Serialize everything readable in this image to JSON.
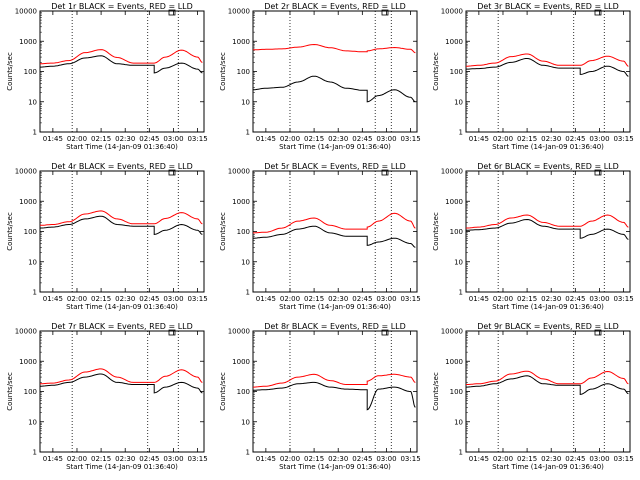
{
  "x_ticks": [
    "01:45",
    "02:00",
    "02:15",
    "02:30",
    "02:45",
    "03:00",
    "03:15"
  ],
  "y_ticks": [
    "1",
    "10",
    "100",
    "1000",
    "10000"
  ],
  "ylabel": "Counts/sec",
  "xlabel": "Start Time (14-Jan-09 01:36:40)",
  "colors": {
    "events": "#000000",
    "lld": "#ff0000",
    "axis": "#000000"
  },
  "chart_data": [
    {
      "type": "line",
      "title": "Det 1r BLACK = Events, RED = LLD",
      "yscale": "log",
      "ylim": [
        1,
        10000
      ],
      "xlabel": "Start Time (14-Jan-09 01:36:40)",
      "ylabel": "Counts/sec",
      "x": [
        "01:37",
        "01:45",
        "01:55",
        "02:05",
        "02:15",
        "02:25",
        "02:35",
        "02:45",
        "02:48",
        "02:55",
        "03:05",
        "03:15",
        "03:18"
      ],
      "series": [
        {
          "name": "Events",
          "values": [
            140,
            150,
            180,
            280,
            330,
            180,
            160,
            160,
            90,
            130,
            190,
            120,
            90
          ]
        },
        {
          "name": "LLD",
          "values": [
            180,
            190,
            230,
            420,
            530,
            290,
            190,
            190,
            190,
            300,
            510,
            300,
            200
          ]
        }
      ]
    },
    {
      "type": "line",
      "title": "Det 2r BLACK = Events, RED = LLD",
      "yscale": "log",
      "ylim": [
        1,
        10000
      ],
      "xlabel": "Start Time (14-Jan-09 01:36:40)",
      "ylabel": "Counts/sec",
      "x": [
        "01:37",
        "01:45",
        "01:55",
        "02:05",
        "02:15",
        "02:25",
        "02:35",
        "02:45",
        "02:48",
        "02:55",
        "03:05",
        "03:15",
        "03:18"
      ],
      "series": [
        {
          "name": "Events",
          "values": [
            25,
            28,
            30,
            45,
            70,
            45,
            28,
            24,
            10,
            16,
            25,
            14,
            10
          ]
        },
        {
          "name": "LLD",
          "values": [
            520,
            540,
            560,
            640,
            780,
            610,
            480,
            450,
            480,
            560,
            620,
            540,
            420
          ]
        }
      ]
    },
    {
      "type": "line",
      "title": "Det 3r BLACK = Events, RED = LLD",
      "yscale": "log",
      "ylim": [
        1,
        10000
      ],
      "xlabel": "Start Time (14-Jan-09 01:36:40)",
      "ylabel": "Counts/sec",
      "x": [
        "01:37",
        "01:45",
        "01:55",
        "02:05",
        "02:15",
        "02:25",
        "02:35",
        "02:45",
        "02:48",
        "02:55",
        "03:05",
        "03:15",
        "03:18"
      ],
      "series": [
        {
          "name": "Events",
          "values": [
            120,
            125,
            140,
            200,
            270,
            160,
            130,
            130,
            80,
            100,
            150,
            100,
            70
          ]
        },
        {
          "name": "LLD",
          "values": [
            150,
            160,
            190,
            310,
            380,
            220,
            160,
            160,
            160,
            230,
            320,
            220,
            150
          ]
        }
      ]
    },
    {
      "type": "line",
      "title": "Det 4r BLACK = Events, RED = LLD",
      "yscale": "log",
      "ylim": [
        1,
        10000
      ],
      "xlabel": "Start Time (14-Jan-09 01:36:40)",
      "ylabel": "Counts/sec",
      "x": [
        "01:37",
        "01:45",
        "01:55",
        "02:05",
        "02:15",
        "02:25",
        "02:35",
        "02:45",
        "02:48",
        "02:55",
        "03:05",
        "03:15",
        "03:18"
      ],
      "series": [
        {
          "name": "Events",
          "values": [
            130,
            140,
            170,
            260,
            320,
            170,
            150,
            150,
            80,
            110,
            170,
            110,
            80
          ]
        },
        {
          "name": "LLD",
          "values": [
            160,
            170,
            210,
            380,
            480,
            260,
            180,
            180,
            180,
            270,
            420,
            260,
            180
          ]
        }
      ]
    },
    {
      "type": "line",
      "title": "Det 5r BLACK = Events, RED = LLD",
      "yscale": "log",
      "ylim": [
        1,
        10000
      ],
      "xlabel": "Start Time (14-Jan-09 01:36:40)",
      "ylabel": "Counts/sec",
      "x": [
        "01:37",
        "01:45",
        "01:55",
        "02:05",
        "02:15",
        "02:25",
        "02:35",
        "02:45",
        "02:48",
        "02:55",
        "03:05",
        "03:15",
        "03:18"
      ],
      "series": [
        {
          "name": "Events",
          "values": [
            60,
            65,
            80,
            120,
            150,
            90,
            70,
            70,
            35,
            45,
            60,
            40,
            30
          ]
        },
        {
          "name": "LLD",
          "values": [
            90,
            95,
            130,
            220,
            280,
            160,
            120,
            120,
            140,
            220,
            400,
            220,
            130
          ]
        }
      ]
    },
    {
      "type": "line",
      "title": "Det 6r BLACK = Events, RED = LLD",
      "yscale": "log",
      "ylim": [
        1,
        10000
      ],
      "xlabel": "Start Time (14-Jan-09 01:36:40)",
      "ylabel": "Counts/sec",
      "x": [
        "01:37",
        "01:45",
        "01:55",
        "02:05",
        "02:15",
        "02:25",
        "02:35",
        "02:45",
        "02:48",
        "02:55",
        "03:05",
        "03:15",
        "03:18"
      ],
      "series": [
        {
          "name": "Events",
          "values": [
            110,
            115,
            130,
            190,
            250,
            150,
            120,
            120,
            60,
            80,
            120,
            80,
            55
          ]
        },
        {
          "name": "LLD",
          "values": [
            130,
            140,
            170,
            280,
            350,
            200,
            150,
            150,
            150,
            220,
            350,
            200,
            140
          ]
        }
      ]
    },
    {
      "type": "line",
      "title": "Det 7r BLACK = Events, RED = LLD",
      "yscale": "log",
      "ylim": [
        1,
        10000
      ],
      "xlabel": "Start Time (14-Jan-09 01:36:40)",
      "ylabel": "Counts/sec",
      "x": [
        "01:37",
        "01:45",
        "01:55",
        "02:05",
        "02:15",
        "02:25",
        "02:35",
        "02:45",
        "02:48",
        "02:55",
        "03:05",
        "03:15",
        "03:18"
      ],
      "series": [
        {
          "name": "Events",
          "values": [
            150,
            160,
            200,
            300,
            380,
            200,
            170,
            170,
            90,
            140,
            200,
            130,
            90
          ]
        },
        {
          "name": "LLD",
          "values": [
            180,
            190,
            240,
            440,
            560,
            300,
            200,
            200,
            200,
            320,
            520,
            300,
            200
          ]
        }
      ]
    },
    {
      "type": "line",
      "title": "Det 8r BLACK = Events, RED = LLD",
      "yscale": "log",
      "ylim": [
        1,
        10000
      ],
      "xlabel": "Start Time (14-Jan-09 01:36:40)",
      "ylabel": "Counts/sec",
      "x": [
        "01:37",
        "01:45",
        "01:55",
        "02:05",
        "02:15",
        "02:25",
        "02:35",
        "02:45",
        "02:48",
        "02:55",
        "03:05",
        "03:15",
        "03:18"
      ],
      "series": [
        {
          "name": "Events",
          "values": [
            110,
            115,
            130,
            180,
            200,
            140,
            120,
            115,
            25,
            120,
            140,
            100,
            30
          ]
        },
        {
          "name": "LLD",
          "values": [
            140,
            150,
            190,
            300,
            370,
            230,
            170,
            170,
            220,
            330,
            370,
            300,
            200
          ]
        }
      ]
    },
    {
      "type": "line",
      "title": "Det 9r BLACK = Events, RED = LLD",
      "yscale": "log",
      "ylim": [
        1,
        10000
      ],
      "xlabel": "Start Time (14-Jan-09 01:36:40)",
      "ylabel": "Counts/sec",
      "x": [
        "01:37",
        "01:45",
        "01:55",
        "02:05",
        "02:15",
        "02:25",
        "02:35",
        "02:45",
        "02:48",
        "02:55",
        "03:05",
        "03:15",
        "03:18"
      ],
      "series": [
        {
          "name": "Events",
          "values": [
            140,
            150,
            180,
            260,
            330,
            180,
            160,
            160,
            80,
            120,
            180,
            120,
            85
          ]
        },
        {
          "name": "LLD",
          "values": [
            170,
            180,
            220,
            380,
            470,
            260,
            180,
            180,
            180,
            280,
            460,
            270,
            180
          ]
        }
      ]
    }
  ]
}
